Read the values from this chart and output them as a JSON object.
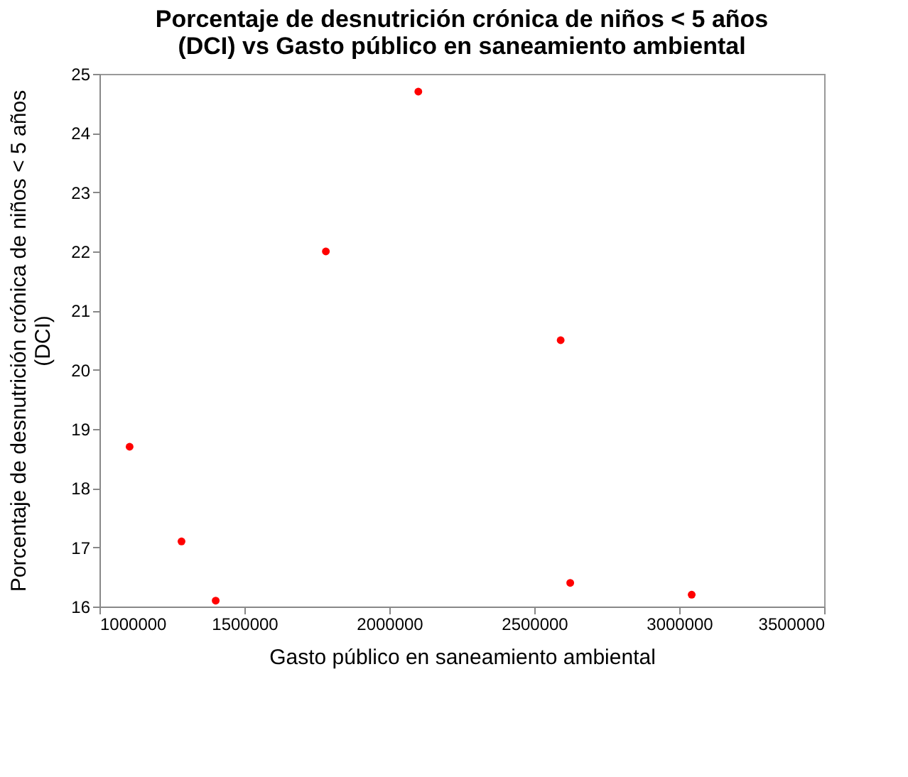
{
  "chart_data": {
    "type": "scatter",
    "title": [
      "Porcentaje de desnutrición crónica de niños < 5 años",
      "(DCI) vs Gasto público en saneamiento ambiental"
    ],
    "xlabel": "Gasto público en saneamiento ambiental",
    "ylabel": [
      "Porcentaje de desnutrición crónica de niños < 5 años",
      "(DCI)"
    ],
    "x": [
      1104000,
      1283000,
      1401000,
      1781000,
      2100000,
      2591000,
      2624000,
      3043000
    ],
    "values": [
      18.7,
      17.1,
      16.1,
      22.0,
      24.7,
      20.5,
      16.4,
      16.2
    ],
    "color": "#ff0000",
    "marker": "circle",
    "xlim": [
      1000000,
      3500000
    ],
    "xticks": [
      1000000,
      1500000,
      2000000,
      2500000,
      3000000,
      3500000
    ],
    "ylim": [
      16,
      25
    ],
    "yticks": [
      16,
      17,
      18,
      19,
      20,
      21,
      22,
      23,
      24,
      25
    ],
    "grid": false
  }
}
